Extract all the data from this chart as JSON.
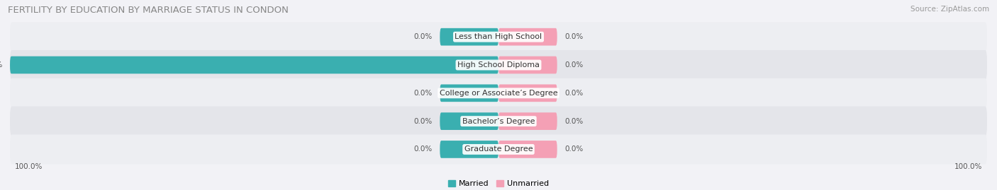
{
  "title": "FERTILITY BY EDUCATION BY MARRIAGE STATUS IN CONDON",
  "source": "Source: ZipAtlas.com",
  "categories": [
    "Less than High School",
    "High School Diploma",
    "College or Associate’s Degree",
    "Bachelor’s Degree",
    "Graduate Degree"
  ],
  "married_values": [
    0.0,
    100.0,
    0.0,
    0.0,
    0.0
  ],
  "unmarried_values": [
    0.0,
    0.0,
    0.0,
    0.0,
    0.0
  ],
  "married_color": "#3aafb0",
  "unmarried_color": "#f4a0b5",
  "row_bg_light": "#edeef2",
  "row_bg_dark": "#e4e5ea",
  "stub_married": 12,
  "stub_unmarried": 12,
  "axis_range": 100,
  "legend_married": "Married",
  "legend_unmarried": "Unmarried",
  "bottom_left_label": "100.0%",
  "bottom_right_label": "100.0%",
  "title_fontsize": 9.5,
  "source_fontsize": 7.5,
  "value_fontsize": 7.5,
  "category_fontsize": 8,
  "legend_fontsize": 8,
  "bar_height": 0.62
}
